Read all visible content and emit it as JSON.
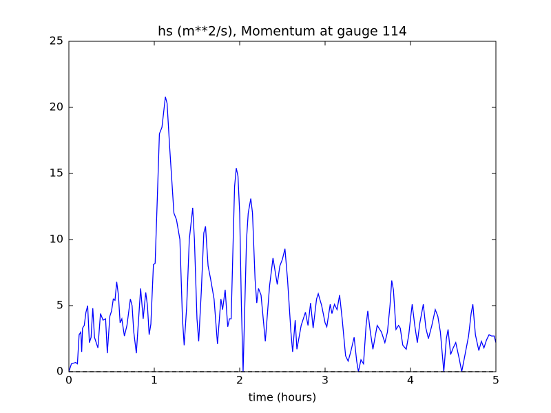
{
  "chart_data": {
    "type": "line",
    "title": "hs (m**2/s), Momentum at gauge 114",
    "xlabel": "time (hours)",
    "x": [
      0,
      0.03,
      0.08,
      0.1,
      0.12,
      0.14,
      0.15,
      0.16,
      0.18,
      0.2,
      0.22,
      0.24,
      0.26,
      0.28,
      0.3,
      0.34,
      0.37,
      0.4,
      0.43,
      0.45,
      0.48,
      0.5,
      0.52,
      0.54,
      0.56,
      0.58,
      0.6,
      0.62,
      0.65,
      0.68,
      0.72,
      0.74,
      0.76,
      0.79,
      0.84,
      0.87,
      0.9,
      0.92,
      0.94,
      0.96,
      0.99,
      1.01,
      1.04,
      1.06,
      1.09,
      1.13,
      1.15,
      1.18,
      1.23,
      1.26,
      1.3,
      1.33,
      1.35,
      1.38,
      1.41,
      1.45,
      1.47,
      1.5,
      1.52,
      1.55,
      1.58,
      1.6,
      1.63,
      1.66,
      1.7,
      1.74,
      1.78,
      1.8,
      1.83,
      1.86,
      1.88,
      1.9,
      1.94,
      1.96,
      1.98,
      2.0,
      2.02,
      2.04,
      2.06,
      2.08,
      2.1,
      2.13,
      2.15,
      2.18,
      2.2,
      2.22,
      2.25,
      2.3,
      2.35,
      2.39,
      2.44,
      2.47,
      2.5,
      2.53,
      2.56,
      2.6,
      2.62,
      2.65,
      2.67,
      2.72,
      2.77,
      2.8,
      2.83,
      2.86,
      2.9,
      2.92,
      2.96,
      3.0,
      3.02,
      3.06,
      3.08,
      3.11,
      3.14,
      3.17,
      3.2,
      3.24,
      3.27,
      3.3,
      3.34,
      3.37,
      3.39,
      3.42,
      3.45,
      3.48,
      3.5,
      3.53,
      3.56,
      3.61,
      3.66,
      3.7,
      3.73,
      3.76,
      3.78,
      3.8,
      3.83,
      3.86,
      3.88,
      3.91,
      3.95,
      3.98,
      4.0,
      4.02,
      4.05,
      4.08,
      4.11,
      4.15,
      4.18,
      4.21,
      4.25,
      4.29,
      4.32,
      4.35,
      4.39,
      4.42,
      4.44,
      4.47,
      4.5,
      4.53,
      4.57,
      4.6,
      4.63,
      4.68,
      4.71,
      4.73,
      4.76,
      4.8,
      4.83,
      4.86,
      4.89,
      4.92,
      4.95,
      4.98,
      5.0
    ],
    "values": [
      0,
      0.6,
      0.7,
      0.6,
      2.8,
      3,
      1.5,
      3.3,
      3.5,
      4.5,
      5,
      2.2,
      2.6,
      4.8,
      2.6,
      1.8,
      4.4,
      3.9,
      4,
      1.4,
      4.2,
      4.6,
      5.5,
      5.4,
      6.8,
      5.8,
      3.7,
      4,
      2.7,
      3.5,
      5.5,
      5,
      3,
      1.4,
      6.3,
      4,
      6,
      5,
      2.8,
      3.6,
      8.1,
      8.2,
      14,
      18,
      18.5,
      20.8,
      20.3,
      17,
      12,
      11.5,
      10,
      4,
      2,
      5,
      10,
      12.4,
      10,
      4,
      2.3,
      6,
      10.5,
      11,
      8,
      7,
      5.5,
      2.1,
      5.5,
      4.7,
      6.2,
      3.4,
      4,
      4,
      14,
      15.4,
      14.8,
      12,
      5,
      0,
      5,
      10,
      12,
      13.1,
      12,
      7,
      5.2,
      6.3,
      5.8,
      2.3,
      6.5,
      8.6,
      6.6,
      8,
      8.5,
      9.3,
      7,
      3,
      1.5,
      3.9,
      1.7,
      3.5,
      4.5,
      3.5,
      5.2,
      3.3,
      5.5,
      5.9,
      5,
      3.7,
      3.4,
      5.1,
      4.4,
      5.1,
      4.7,
      5.8,
      4,
      1.2,
      0.8,
      1.5,
      2.6,
      0.8,
      0,
      0.9,
      0.6,
      3.5,
      4.6,
      3,
      1.7,
      3.5,
      3,
      2.2,
      3,
      5,
      6.9,
      6.2,
      3.2,
      3.5,
      3.3,
      2,
      1.7,
      2.8,
      4,
      5.1,
      3.5,
      2.2,
      3.7,
      5.1,
      3.3,
      2.5,
      3.5,
      4.7,
      4.2,
      3,
      0,
      2.5,
      3.2,
      1.3,
      1.8,
      2.2,
      1,
      0,
      1,
      2.7,
      4.4,
      5.1,
      2.8,
      1.6,
      2.3,
      1.8,
      2.4,
      2.8,
      2.7,
      2.7,
      2.2
    ],
    "color": "#0000ff",
    "xlim": [
      0,
      5
    ],
    "xticks": [
      0,
      1,
      2,
      3,
      4,
      5
    ],
    "ylim": [
      0,
      25
    ],
    "yticks": [
      0,
      5,
      10,
      15,
      20,
      25
    ],
    "hline": {
      "y": 0,
      "color": "#000000",
      "dashed": true
    }
  }
}
